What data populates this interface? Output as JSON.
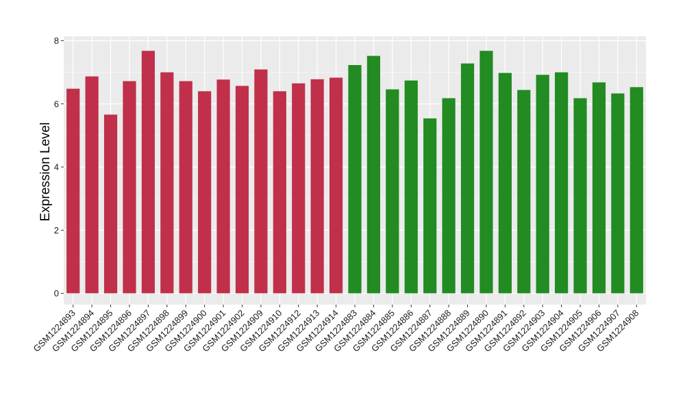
{
  "chart_data": {
    "type": "bar",
    "ylabel": "Expression Level",
    "xlabel": "",
    "ylim": [
      0,
      8
    ],
    "yticks": [
      0,
      2,
      4,
      6,
      8
    ],
    "grid": true,
    "legend": "none",
    "colors": {
      "group1": "#c0304a",
      "group2": "#228b22",
      "panel": "#ebebeb",
      "gridline": "#ffffff"
    },
    "categories": [
      "GSM1224893",
      "GSM1224894",
      "GSM1224895",
      "GSM1224896",
      "GSM1224897",
      "GSM1224898",
      "GSM1224899",
      "GSM1224900",
      "GSM1224901",
      "GSM1224902",
      "GSM1224909",
      "GSM1224910",
      "GSM1224912",
      "GSM1224913",
      "GSM1224914",
      "GSM1224883",
      "GSM1224884",
      "GSM1224885",
      "GSM1224886",
      "GSM1224887",
      "GSM1224888",
      "GSM1224889",
      "GSM1224890",
      "GSM1224891",
      "GSM1224892",
      "GSM1224903",
      "GSM1224904",
      "GSM1224905",
      "GSM1224906",
      "GSM1224907",
      "GSM1224908"
    ],
    "values": [
      6.48,
      6.87,
      5.66,
      6.72,
      7.68,
      7.0,
      6.72,
      6.4,
      6.77,
      6.57,
      7.09,
      6.4,
      6.65,
      6.78,
      6.83,
      7.23,
      7.52,
      6.46,
      6.74,
      5.54,
      6.18,
      7.28,
      7.68,
      6.98,
      6.44,
      6.92,
      7.0,
      6.18,
      6.68,
      6.33,
      6.53
    ],
    "groups": [
      1,
      1,
      1,
      1,
      1,
      1,
      1,
      1,
      1,
      1,
      1,
      1,
      1,
      1,
      1,
      2,
      2,
      2,
      2,
      2,
      2,
      2,
      2,
      2,
      2,
      2,
      2,
      2,
      2,
      2,
      2
    ]
  }
}
